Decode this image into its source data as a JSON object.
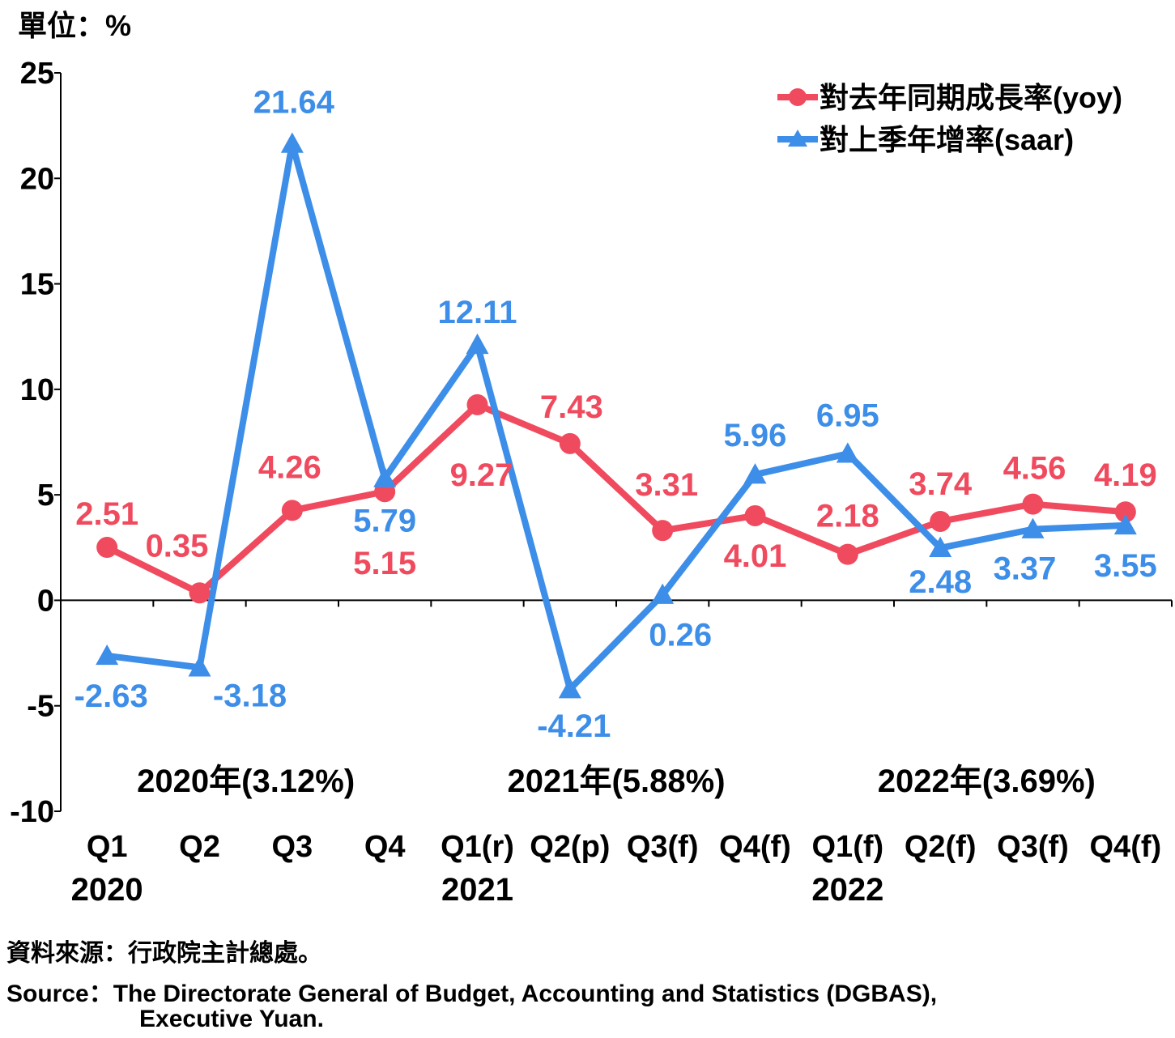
{
  "unit_label": "單位：%",
  "chart_data": {
    "type": "line",
    "title": "",
    "xlabel": "",
    "ylabel": "",
    "ylim": [
      -10,
      25
    ],
    "yticks": [
      25,
      20,
      15,
      10,
      5,
      0,
      -5,
      -10
    ],
    "grid": false,
    "legend_position": "top-right",
    "categories": [
      "Q1",
      "Q2",
      "Q3",
      "Q4",
      "Q1(r)",
      "Q2(p)",
      "Q3(f)",
      "Q4(f)",
      "Q1(f)",
      "Q2(f)",
      "Q3(f)",
      "Q4(f)"
    ],
    "year_labels": [
      {
        "category_index": 0,
        "text": "2020"
      },
      {
        "category_index": 4,
        "text": "2021"
      },
      {
        "category_index": 8,
        "text": "2022"
      }
    ],
    "annual_labels": [
      {
        "category_index": 1.5,
        "text": "2020年(3.12%)"
      },
      {
        "category_index": 5.5,
        "text": "2021年(5.88%)"
      },
      {
        "category_index": 9.5,
        "text": "2022年(3.69%)"
      }
    ],
    "series": [
      {
        "name": "對去年同期成長率(yoy)",
        "color": "#f04a5e",
        "marker": "circle",
        "values": [
          2.51,
          0.35,
          4.26,
          5.15,
          9.27,
          7.43,
          3.31,
          4.01,
          2.18,
          3.74,
          4.56,
          4.19
        ],
        "labels": [
          "2.51",
          "0.35",
          "4.26",
          "5.15",
          "9.27",
          "7.43",
          "3.31",
          "4.01",
          "2.18",
          "3.74",
          "4.56",
          "4.19"
        ]
      },
      {
        "name": "對上季年增率(saar)",
        "color": "#3d8ee8",
        "marker": "triangle",
        "values": [
          -2.63,
          -3.18,
          21.64,
          5.79,
          12.11,
          -4.21,
          0.26,
          5.96,
          6.95,
          2.48,
          3.37,
          3.55
        ],
        "labels": [
          "-2.63",
          "-3.18",
          "21.64",
          "5.79",
          "12.11",
          "-4.21",
          "0.26",
          "5.96",
          "6.95",
          "2.48",
          "3.37",
          "3.55"
        ]
      }
    ]
  },
  "source": {
    "zh": "資料來源：行政院主計總處。",
    "en_line1": "Source：The Directorate General of Budget, Accounting and Statistics (DGBAS),",
    "en_line2": "Executive Yuan."
  }
}
